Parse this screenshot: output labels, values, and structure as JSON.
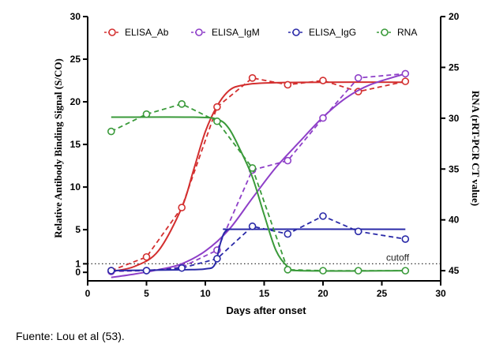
{
  "chart_data": {
    "type": "line",
    "x": [
      2,
      5,
      8,
      11,
      14,
      17,
      20,
      23,
      27
    ],
    "xlabel": "Days after onset",
    "ylabel_left": "Relative Antibody Binding Signal (S/CO)",
    "ylabel_right": "RNA (rRT-PCR CT value)",
    "xlim": [
      0,
      30
    ],
    "ylim_left": [
      -1,
      30
    ],
    "ylim_right": [
      20,
      46
    ],
    "right_axis_inverted": true,
    "xticks": [
      "0",
      "5",
      "10",
      "15",
      "20",
      "25",
      "30"
    ],
    "yticks_left": [
      "0",
      "1",
      "5",
      "10",
      "15",
      "20",
      "25",
      "30"
    ],
    "yticks_right": [
      "20",
      "25",
      "30",
      "35",
      "40",
      "45"
    ],
    "legend_position": "top",
    "cutoff": {
      "label": "cutoff",
      "value": 1
    },
    "series": [
      {
        "name": "ELISA_Ab",
        "color": "#d32f2f",
        "axis": "left",
        "observed": [
          [
            2,
            0.2
          ],
          [
            5,
            1.8
          ],
          [
            8,
            7.6
          ],
          [
            11,
            19.4
          ],
          [
            14,
            22.8
          ],
          [
            17,
            22.0
          ],
          [
            20,
            22.5
          ],
          [
            23,
            21.2
          ],
          [
            27,
            22.4
          ]
        ],
        "fit": [
          [
            2,
            0.1
          ],
          [
            4,
            0.7
          ],
          [
            6,
            2.5
          ],
          [
            8,
            7.6
          ],
          [
            9,
            12
          ],
          [
            10,
            16.5
          ],
          [
            11,
            19.5
          ],
          [
            12,
            21.3
          ],
          [
            13,
            21.9
          ],
          [
            15,
            22.2
          ],
          [
            20,
            22.3
          ],
          [
            27,
            22.3
          ]
        ]
      },
      {
        "name": "ELISA_IgM",
        "color": "#8e3fc8",
        "axis": "left",
        "observed": [
          [
            2,
            0.1
          ],
          [
            5,
            0.2
          ],
          [
            8,
            0.6
          ],
          [
            11,
            2.6
          ],
          [
            14,
            12.0
          ],
          [
            17,
            13.1
          ],
          [
            20,
            18.1
          ],
          [
            23,
            22.8
          ],
          [
            27,
            23.3
          ]
        ],
        "fit": [
          [
            2,
            -0.6
          ],
          [
            4,
            -0.2
          ],
          [
            6,
            0.3
          ],
          [
            8,
            1.0
          ],
          [
            10,
            2.5
          ],
          [
            12,
            5.0
          ],
          [
            14,
            8.7
          ],
          [
            16,
            12.3
          ],
          [
            18,
            15.3
          ],
          [
            20,
            18.2
          ],
          [
            22,
            20.5
          ],
          [
            24,
            22.0
          ],
          [
            27,
            23.3
          ]
        ]
      },
      {
        "name": "ELISA_IgG",
        "color": "#2a2aa8",
        "axis": "left",
        "observed": [
          [
            2,
            0.2
          ],
          [
            5,
            0.2
          ],
          [
            8,
            0.5
          ],
          [
            11,
            1.6
          ],
          [
            14,
            5.4
          ],
          [
            17,
            4.5
          ],
          [
            20,
            6.6
          ],
          [
            23,
            4.8
          ],
          [
            27,
            3.9
          ]
        ],
        "fit": [
          [
            2,
            0.2
          ],
          [
            8,
            0.3
          ],
          [
            10,
            0.4
          ],
          [
            10.8,
            0.9
          ],
          [
            11.3,
            3.5
          ],
          [
            11.8,
            4.9
          ],
          [
            13,
            5.05
          ],
          [
            27,
            5.05
          ]
        ]
      },
      {
        "name": "RNA",
        "color": "#3a9a3a",
        "axis": "right",
        "observed": [
          [
            2,
            31.3
          ],
          [
            5,
            29.6
          ],
          [
            8,
            28.6
          ],
          [
            11,
            30.3
          ],
          [
            14,
            34.9
          ],
          [
            17,
            44.9
          ],
          [
            20,
            45.0
          ],
          [
            23,
            45.0
          ],
          [
            27,
            45.0
          ]
        ],
        "fit": [
          [
            2,
            29.9
          ],
          [
            9,
            29.9
          ],
          [
            11,
            30.1
          ],
          [
            12,
            31.0
          ],
          [
            13,
            33.2
          ],
          [
            14,
            35.8
          ],
          [
            15,
            39.5
          ],
          [
            16,
            43.0
          ],
          [
            17,
            44.6
          ],
          [
            18,
            45.0
          ],
          [
            27,
            45.0
          ]
        ]
      }
    ]
  },
  "caption": "Fuente: Lou et al (53)."
}
